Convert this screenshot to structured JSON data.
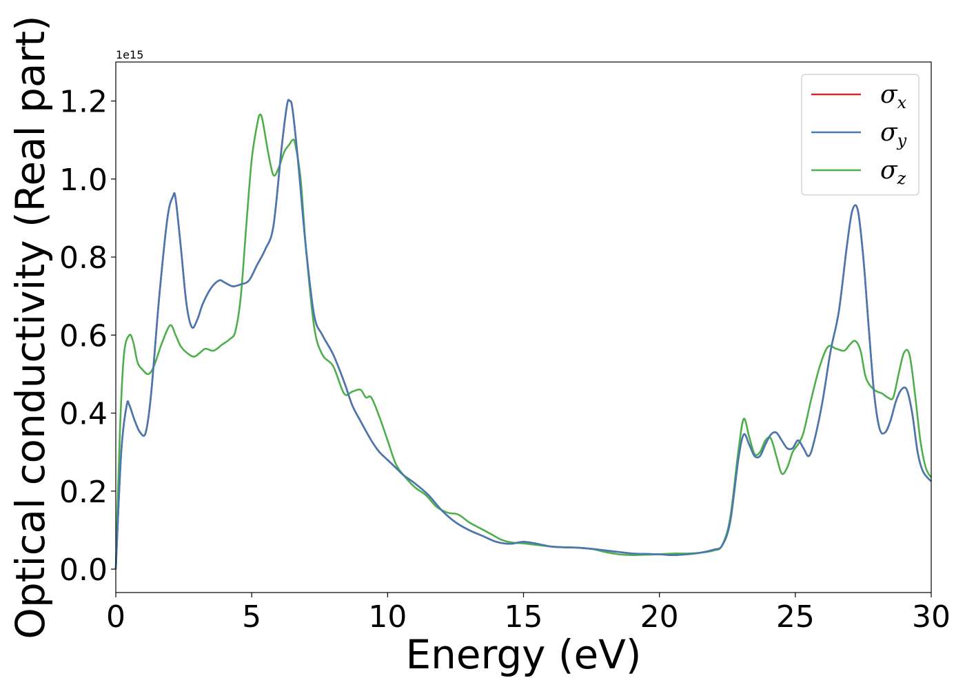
{
  "chart_data": {
    "type": "line",
    "title": "",
    "xlabel": "Energy (eV)",
    "ylabel": "Optical conductivity (Real part)",
    "y_offset_text": "1e15",
    "xlim": [
      0,
      30
    ],
    "ylim": [
      -0.06,
      1.3
    ],
    "xticks": [
      0,
      5,
      10,
      15,
      20,
      25,
      30
    ],
    "xtick_labels": [
      "0",
      "5",
      "10",
      "15",
      "20",
      "25",
      "30"
    ],
    "yticks": [
      0.0,
      0.2,
      0.4,
      0.6,
      0.8,
      1.0,
      1.2
    ],
    "ytick_labels": [
      "0.0",
      "0.2",
      "0.4",
      "0.6",
      "0.8",
      "1.0",
      "1.2"
    ],
    "grid": false,
    "legend_position": "top-right",
    "series": [
      {
        "name": "σx",
        "legend_base": "σ",
        "legend_sub": "x",
        "color": "#d62728",
        "x": [
          0,
          0.2,
          0.4,
          0.5,
          0.7,
          0.9,
          1.1,
          1.3,
          1.6,
          1.9,
          2.1,
          2.2,
          2.4,
          2.6,
          2.8,
          3.0,
          3.2,
          3.5,
          3.8,
          4.0,
          4.3,
          4.6,
          4.9,
          5.2,
          5.5,
          5.8,
          6.1,
          6.3,
          6.4,
          6.5,
          6.7,
          7.0,
          7.3,
          7.6,
          8.0,
          8.4,
          8.7,
          9.0,
          9.4,
          9.7,
          10.0,
          10.3,
          10.6,
          11.0,
          11.5,
          12.0,
          12.5,
          13.0,
          13.5,
          14.0,
          14.5,
          15.0,
          15.5,
          16.0,
          16.5,
          17.0,
          17.5,
          18.0,
          18.5,
          19.0,
          19.5,
          20.0,
          20.5,
          21.0,
          21.5,
          22.0,
          22.3,
          22.6,
          22.9,
          23.1,
          23.3,
          23.5,
          23.7,
          23.9,
          24.1,
          24.3,
          24.5,
          24.7,
          24.9,
          25.1,
          25.3,
          25.5,
          25.7,
          26.0,
          26.3,
          26.6,
          26.9,
          27.1,
          27.3,
          27.5,
          27.7,
          27.9,
          28.1,
          28.3,
          28.5,
          28.7,
          28.9,
          29.1,
          29.3,
          29.5,
          29.7,
          30.0
        ],
        "values": [
          0.0,
          0.3,
          0.42,
          0.42,
          0.38,
          0.35,
          0.35,
          0.45,
          0.7,
          0.9,
          0.955,
          0.95,
          0.82,
          0.68,
          0.62,
          0.64,
          0.68,
          0.72,
          0.74,
          0.735,
          0.725,
          0.73,
          0.74,
          0.78,
          0.82,
          0.88,
          1.08,
          1.19,
          1.2,
          1.18,
          1.05,
          0.82,
          0.65,
          0.6,
          0.55,
          0.48,
          0.42,
          0.38,
          0.33,
          0.3,
          0.28,
          0.26,
          0.24,
          0.22,
          0.19,
          0.15,
          0.12,
          0.1,
          0.085,
          0.07,
          0.065,
          0.07,
          0.065,
          0.058,
          0.056,
          0.055,
          0.052,
          0.048,
          0.044,
          0.04,
          0.039,
          0.038,
          0.036,
          0.038,
          0.042,
          0.05,
          0.06,
          0.12,
          0.28,
          0.345,
          0.32,
          0.29,
          0.29,
          0.32,
          0.345,
          0.35,
          0.33,
          0.31,
          0.31,
          0.33,
          0.31,
          0.29,
          0.33,
          0.43,
          0.56,
          0.66,
          0.83,
          0.92,
          0.92,
          0.8,
          0.62,
          0.45,
          0.36,
          0.35,
          0.38,
          0.43,
          0.46,
          0.46,
          0.4,
          0.3,
          0.25,
          0.225
        ]
      },
      {
        "name": "σy",
        "legend_base": "σ",
        "legend_sub": "y",
        "color": "#4679b2",
        "x": [
          0,
          0.2,
          0.4,
          0.5,
          0.7,
          0.9,
          1.1,
          1.3,
          1.6,
          1.9,
          2.1,
          2.2,
          2.4,
          2.6,
          2.8,
          3.0,
          3.2,
          3.5,
          3.8,
          4.0,
          4.3,
          4.6,
          4.9,
          5.2,
          5.5,
          5.8,
          6.1,
          6.3,
          6.4,
          6.5,
          6.7,
          7.0,
          7.3,
          7.6,
          8.0,
          8.4,
          8.7,
          9.0,
          9.4,
          9.7,
          10.0,
          10.3,
          10.6,
          11.0,
          11.5,
          12.0,
          12.5,
          13.0,
          13.5,
          14.0,
          14.5,
          15.0,
          15.5,
          16.0,
          16.5,
          17.0,
          17.5,
          18.0,
          18.5,
          19.0,
          19.5,
          20.0,
          20.5,
          21.0,
          21.5,
          22.0,
          22.3,
          22.6,
          22.9,
          23.1,
          23.3,
          23.5,
          23.7,
          23.9,
          24.1,
          24.3,
          24.5,
          24.7,
          24.9,
          25.1,
          25.3,
          25.5,
          25.7,
          26.0,
          26.3,
          26.6,
          26.9,
          27.1,
          27.3,
          27.5,
          27.7,
          27.9,
          28.1,
          28.3,
          28.5,
          28.7,
          28.9,
          29.1,
          29.3,
          29.5,
          29.7,
          30.0
        ],
        "values": [
          0.0,
          0.3,
          0.42,
          0.42,
          0.38,
          0.35,
          0.35,
          0.45,
          0.7,
          0.9,
          0.955,
          0.95,
          0.82,
          0.68,
          0.62,
          0.64,
          0.68,
          0.72,
          0.74,
          0.735,
          0.725,
          0.73,
          0.74,
          0.78,
          0.82,
          0.88,
          1.08,
          1.19,
          1.2,
          1.18,
          1.05,
          0.82,
          0.65,
          0.6,
          0.55,
          0.48,
          0.42,
          0.38,
          0.33,
          0.3,
          0.28,
          0.26,
          0.24,
          0.22,
          0.19,
          0.15,
          0.12,
          0.1,
          0.085,
          0.07,
          0.065,
          0.07,
          0.065,
          0.058,
          0.056,
          0.055,
          0.052,
          0.048,
          0.044,
          0.04,
          0.039,
          0.038,
          0.036,
          0.038,
          0.042,
          0.05,
          0.06,
          0.12,
          0.28,
          0.345,
          0.32,
          0.29,
          0.29,
          0.32,
          0.345,
          0.35,
          0.33,
          0.31,
          0.31,
          0.33,
          0.31,
          0.29,
          0.33,
          0.43,
          0.56,
          0.66,
          0.83,
          0.92,
          0.92,
          0.8,
          0.62,
          0.45,
          0.36,
          0.35,
          0.38,
          0.43,
          0.46,
          0.46,
          0.4,
          0.3,
          0.25,
          0.225
        ]
      },
      {
        "name": "σz",
        "legend_base": "σ",
        "legend_sub": "z",
        "color": "#4daf4a",
        "x": [
          0,
          0.15,
          0.3,
          0.5,
          0.65,
          0.8,
          1.0,
          1.2,
          1.4,
          1.7,
          2.0,
          2.2,
          2.4,
          2.7,
          2.9,
          3.1,
          3.3,
          3.6,
          3.9,
          4.2,
          4.4,
          4.6,
          4.8,
          5.0,
          5.2,
          5.3,
          5.4,
          5.6,
          5.8,
          6.0,
          6.2,
          6.4,
          6.5,
          6.6,
          6.8,
          7.0,
          7.3,
          7.6,
          8.0,
          8.4,
          8.7,
          9.0,
          9.2,
          9.4,
          9.7,
          10.0,
          10.3,
          10.6,
          11.0,
          11.4,
          11.8,
          12.2,
          12.6,
          13.0,
          13.4,
          13.8,
          14.2,
          14.6,
          15.0,
          15.5,
          16.0,
          16.5,
          17.0,
          17.5,
          18.0,
          18.5,
          19.0,
          19.5,
          20.0,
          20.5,
          21.0,
          21.5,
          22.0,
          22.3,
          22.6,
          22.9,
          23.1,
          23.3,
          23.5,
          23.7,
          23.9,
          24.1,
          24.3,
          24.5,
          24.7,
          24.9,
          25.1,
          25.3,
          25.6,
          25.9,
          26.2,
          26.5,
          26.8,
          27.0,
          27.2,
          27.4,
          27.6,
          27.9,
          28.2,
          28.4,
          28.6,
          28.8,
          29.0,
          29.2,
          29.4,
          29.6,
          29.8,
          30.0
        ],
        "values": [
          0.0,
          0.35,
          0.55,
          0.6,
          0.58,
          0.53,
          0.51,
          0.5,
          0.52,
          0.58,
          0.625,
          0.6,
          0.57,
          0.55,
          0.545,
          0.555,
          0.565,
          0.56,
          0.575,
          0.59,
          0.61,
          0.7,
          0.88,
          1.05,
          1.14,
          1.165,
          1.15,
          1.07,
          1.01,
          1.03,
          1.07,
          1.09,
          1.1,
          1.09,
          1.0,
          0.82,
          0.62,
          0.55,
          0.52,
          0.45,
          0.455,
          0.46,
          0.44,
          0.44,
          0.39,
          0.33,
          0.27,
          0.24,
          0.21,
          0.19,
          0.16,
          0.145,
          0.14,
          0.12,
          0.105,
          0.09,
          0.075,
          0.068,
          0.066,
          0.062,
          0.058,
          0.056,
          0.055,
          0.052,
          0.044,
          0.038,
          0.036,
          0.037,
          0.038,
          0.04,
          0.04,
          0.042,
          0.048,
          0.06,
          0.13,
          0.3,
          0.385,
          0.34,
          0.295,
          0.3,
          0.33,
          0.335,
          0.29,
          0.245,
          0.26,
          0.3,
          0.32,
          0.35,
          0.44,
          0.52,
          0.57,
          0.565,
          0.56,
          0.575,
          0.585,
          0.56,
          0.49,
          0.46,
          0.45,
          0.44,
          0.44,
          0.5,
          0.555,
          0.55,
          0.45,
          0.33,
          0.26,
          0.235
        ]
      }
    ]
  }
}
